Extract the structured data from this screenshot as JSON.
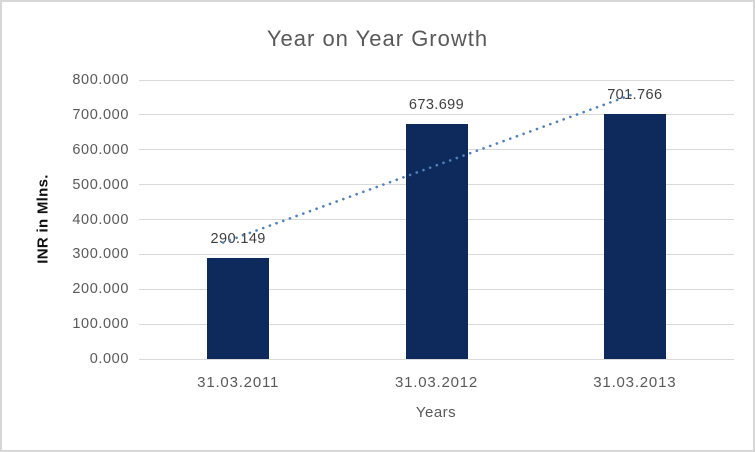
{
  "chart": {
    "title": "Year on Year Growth",
    "y_axis_title": "INR in Mlns.",
    "x_axis_title": "Years",
    "colors": {
      "bar": "#0e2a5c",
      "trendline": "#4e82bd",
      "gridline": "#d9d9d9",
      "axis_text": "#595959",
      "data_label_text": "#3f3f3f",
      "title_text": "#595959",
      "border": "#d7d7d7",
      "background": "#ffffff"
    }
  },
  "chart_data": {
    "type": "bar",
    "title": "Year on Year Growth",
    "xlabel": "Years",
    "ylabel": "INR in Mlns.",
    "categories": [
      "31.03.2011",
      "31.03.2012",
      "31.03.2013"
    ],
    "values": [
      290.149,
      673.699,
      701.766
    ],
    "value_labels": [
      "290.149",
      "673.699",
      "701.766"
    ],
    "ylim": [
      0,
      800
    ],
    "ytick_step": 100,
    "ytick_labels": [
      "0.000",
      "100.000",
      "200.000",
      "300.000",
      "400.000",
      "500.000",
      "600.000",
      "700.000",
      "800.000"
    ],
    "grid": true,
    "legend": "none",
    "trendline": {
      "type": "linear",
      "style": "dotted"
    }
  }
}
